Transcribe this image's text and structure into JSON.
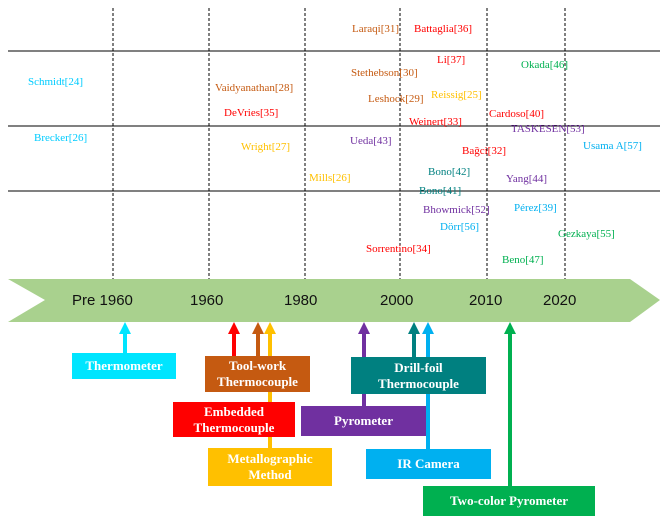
{
  "timeline": {
    "years": [
      {
        "label": "Pre 1960"
      },
      {
        "label": "1960"
      },
      {
        "label": "1980"
      },
      {
        "label": "2000"
      },
      {
        "label": "2010"
      },
      {
        "label": "2020"
      }
    ],
    "band_color": "#a9d18e"
  },
  "references": [
    {
      "text": "Laraqi[31]",
      "color": "#c55a11"
    },
    {
      "text": "Battaglia[36]",
      "color": "#ff0000"
    },
    {
      "text": "Li[37]",
      "color": "#ff0000"
    },
    {
      "text": "Okada[46]",
      "color": "#00b050"
    },
    {
      "text": "Schmidt[24]",
      "color": "#00ccff"
    },
    {
      "text": "Vaidyanathan[28]",
      "color": "#c55a11"
    },
    {
      "text": "Stethebson[30]",
      "color": "#c55a11"
    },
    {
      "text": "Reissig[25]",
      "color": "#ffc000"
    },
    {
      "text": "Leshock[29]",
      "color": "#c55a11"
    },
    {
      "text": "DeVries[35]",
      "color": "#ff0000"
    },
    {
      "text": "Cardoso[40]",
      "color": "#ff0000"
    },
    {
      "text": "Weinert[33]",
      "color": "#ff0000"
    },
    {
      "text": "TASKESEN[53]",
      "color": "#7030a0"
    },
    {
      "text": "Brecker[26]",
      "color": "#00ccff"
    },
    {
      "text": "Ueda[43]",
      "color": "#7030a0"
    },
    {
      "text": "Usama A[57]",
      "color": "#00b0f0"
    },
    {
      "text": "Wright[27]",
      "color": "#ffc000"
    },
    {
      "text": "Bağci[32]",
      "color": "#ff0000"
    },
    {
      "text": "Bono[42]",
      "color": "#008080"
    },
    {
      "text": "Mills[26]",
      "color": "#ffc000"
    },
    {
      "text": "Yang[44]",
      "color": "#7030a0"
    },
    {
      "text": "Bono[41]",
      "color": "#008080"
    },
    {
      "text": "Bhowmick[52]",
      "color": "#7030a0"
    },
    {
      "text": "Pérez[39]",
      "color": "#00b0f0"
    },
    {
      "text": "Dörr[56]",
      "color": "#00b0f0"
    },
    {
      "text": "Gezkaya[55]",
      "color": "#00b050"
    },
    {
      "text": "Sorrentino[34]",
      "color": "#ff0000"
    },
    {
      "text": "Beno[47]",
      "color": "#00b050"
    }
  ],
  "methods": [
    {
      "label": "Thermometer",
      "color": "#00e5ff"
    },
    {
      "label": "Tool-work Thermocouple",
      "color": "#c55a11"
    },
    {
      "label": "Embedded Thermocouple",
      "color": "#ff0000"
    },
    {
      "label": "Metallographic Method",
      "color": "#ffc000"
    },
    {
      "label": "Pyrometer",
      "color": "#7030a0"
    },
    {
      "label": "Drill-foil Thermocouple",
      "color": "#008080"
    },
    {
      "label": "IR Camera",
      "color": "#00b0f0"
    },
    {
      "label": "Two-color Pyrometer",
      "color": "#00b050"
    }
  ]
}
